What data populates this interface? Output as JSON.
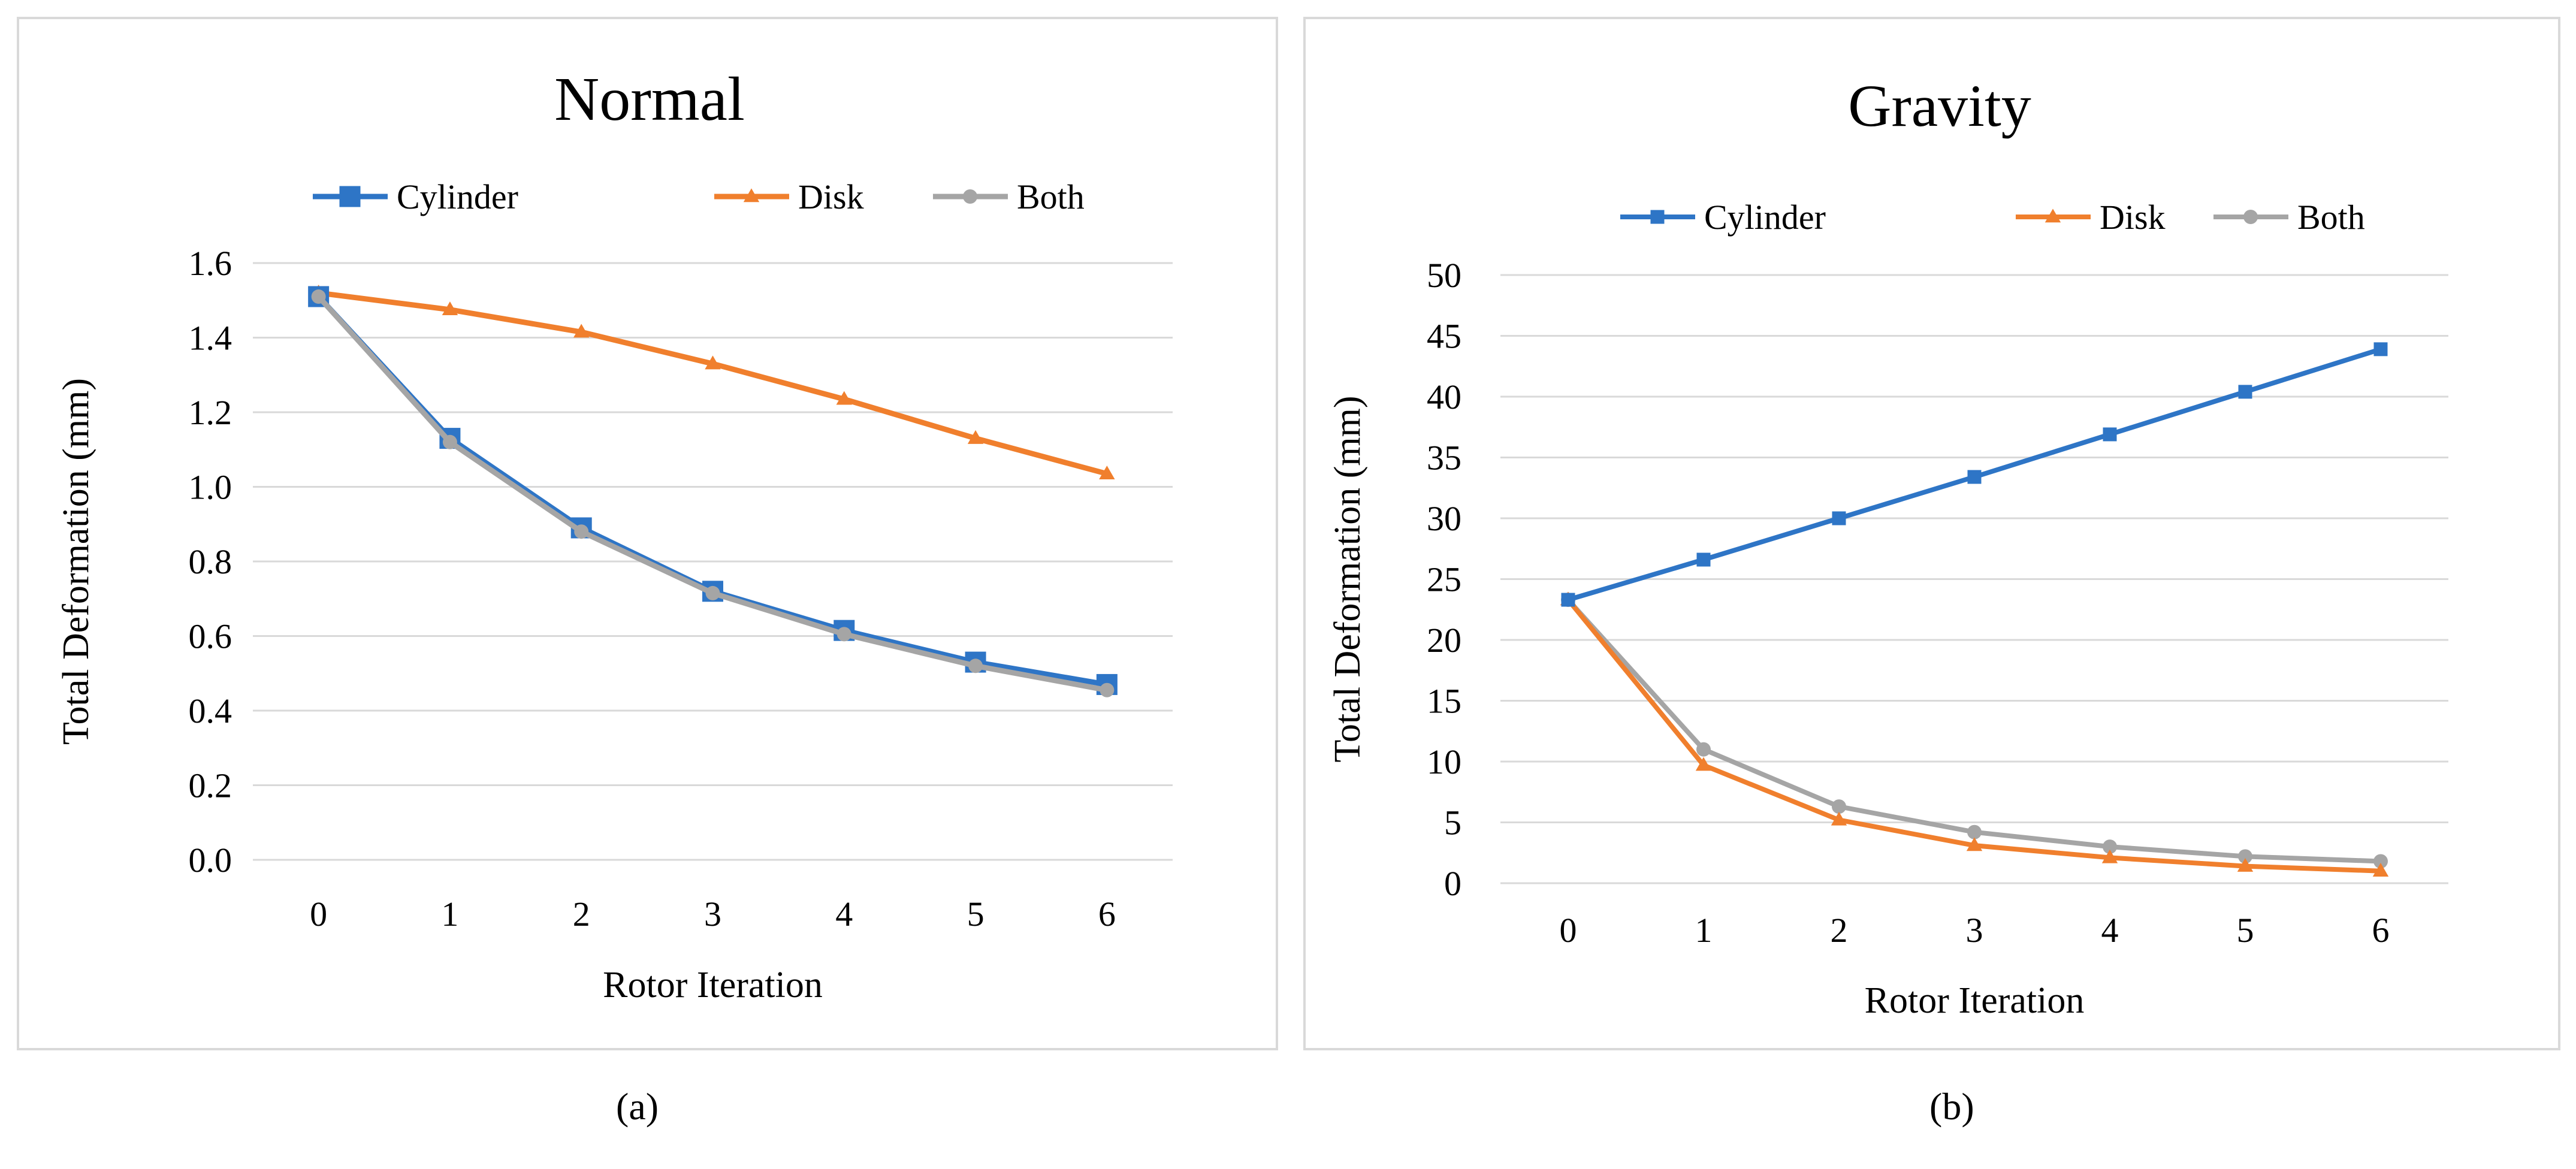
{
  "chart_data": [
    {
      "type": "line",
      "title": "Normal",
      "xlabel": "Rotor Iteration",
      "ylabel": "Total Deformation (mm)",
      "categories": [
        "0",
        "1",
        "2",
        "3",
        "4",
        "5",
        "6"
      ],
      "ylim": [
        0,
        1.6
      ],
      "yticks": [
        "0.0",
        "0.2",
        "0.4",
        "0.6",
        "0.8",
        "1.0",
        "1.2",
        "1.4",
        "1.6"
      ],
      "legend_position": "top",
      "grid": true,
      "series": [
        {
          "name": "Cylinder",
          "color": "#2e75c6",
          "marker": "square",
          "values": [
            1.51,
            1.13,
            0.89,
            0.72,
            0.615,
            0.53,
            0.47
          ]
        },
        {
          "name": "Disk",
          "color": "#f07f2d",
          "marker": "triangle",
          "values": [
            1.52,
            1.475,
            1.415,
            1.33,
            1.235,
            1.13,
            1.035
          ]
        },
        {
          "name": "Both",
          "color": "#a5a5a5",
          "marker": "circle",
          "values": [
            1.51,
            1.12,
            0.88,
            0.715,
            0.605,
            0.52,
            0.455
          ]
        }
      ],
      "caption": "(a)"
    },
    {
      "type": "line",
      "title": "Gravity",
      "xlabel": "Rotor Iteration",
      "ylabel": "Total Deformation (mm)",
      "categories": [
        "0",
        "1",
        "2",
        "3",
        "4",
        "5",
        "6"
      ],
      "ylim": [
        0,
        50
      ],
      "yticks": [
        "0",
        "5",
        "10",
        "15",
        "20",
        "25",
        "30",
        "35",
        "40",
        "45",
        "50"
      ],
      "legend_position": "top",
      "grid": true,
      "series": [
        {
          "name": "Cylinder",
          "color": "#2e75c6",
          "marker": "square",
          "values": [
            23.3,
            26.6,
            30.0,
            33.4,
            36.9,
            40.4,
            43.9
          ]
        },
        {
          "name": "Disk",
          "color": "#f07f2d",
          "marker": "triangle",
          "values": [
            23.3,
            9.7,
            5.2,
            3.1,
            2.1,
            1.4,
            1.0
          ]
        },
        {
          "name": "Both",
          "color": "#a5a5a5",
          "marker": "circle",
          "values": [
            23.3,
            11.0,
            6.3,
            4.2,
            3.0,
            2.2,
            1.8
          ]
        }
      ],
      "caption": "(b)"
    }
  ]
}
